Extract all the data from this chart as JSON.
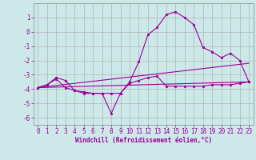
{
  "xlabel": "Windchill (Refroidissement éolien,°C)",
  "bg_color": "#cce8e8",
  "grid_color": "#aaaaaa",
  "line_color": "#990099",
  "spine_color": "#888888",
  "xlim": [
    -0.5,
    23.5
  ],
  "ylim": [
    -6.5,
    2.0
  ],
  "xticks": [
    0,
    1,
    2,
    3,
    4,
    5,
    6,
    7,
    8,
    9,
    10,
    11,
    12,
    13,
    14,
    15,
    16,
    17,
    18,
    19,
    20,
    21,
    22,
    23
  ],
  "yticks": [
    -6,
    -5,
    -4,
    -3,
    -2,
    -1,
    0,
    1
  ],
  "tick_fontsize": 5.5,
  "xlabel_fontsize": 5.5,
  "line1_x": [
    0,
    1,
    2,
    3,
    4,
    5,
    6,
    7,
    8,
    9,
    10,
    11,
    12,
    13,
    14,
    15,
    16,
    17,
    18,
    19,
    20,
    21,
    22,
    23
  ],
  "line1_y": [
    -3.9,
    -3.7,
    -3.3,
    -3.9,
    -4.1,
    -4.3,
    -4.3,
    -4.3,
    -5.7,
    -4.3,
    -3.5,
    -2.1,
    -0.2,
    0.3,
    1.2,
    1.4,
    1.0,
    0.5,
    -1.1,
    -1.4,
    -1.8,
    -1.5,
    -2.0,
    -3.5
  ],
  "line2_x": [
    0,
    1,
    2,
    3,
    4,
    5,
    6,
    7,
    8,
    9,
    10,
    11,
    12,
    13,
    14,
    15,
    16,
    17,
    18,
    19,
    20,
    21,
    22,
    23
  ],
  "line2_y": [
    -3.9,
    -3.7,
    -3.2,
    -3.4,
    -4.1,
    -4.2,
    -4.3,
    -4.3,
    -4.3,
    -4.3,
    -3.6,
    -3.4,
    -3.2,
    -3.1,
    -3.8,
    -3.8,
    -3.8,
    -3.8,
    -3.8,
    -3.7,
    -3.7,
    -3.7,
    -3.6,
    -3.5
  ],
  "line3_x": [
    0,
    23
  ],
  "line3_y": [
    -3.9,
    -2.2
  ],
  "line4_x": [
    0,
    23
  ],
  "line4_y": [
    -3.9,
    -3.5
  ],
  "lw": 0.8,
  "ms": 2.0
}
